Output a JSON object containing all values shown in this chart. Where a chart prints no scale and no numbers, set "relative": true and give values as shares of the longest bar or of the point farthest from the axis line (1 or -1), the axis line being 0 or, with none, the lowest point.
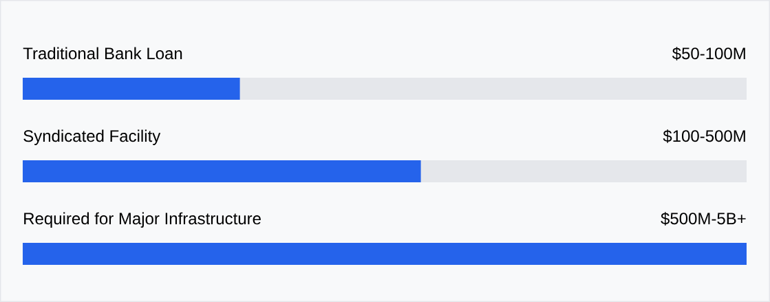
{
  "chart_data": {
    "type": "bar",
    "orientation": "horizontal",
    "relative": true,
    "categories": [
      "Traditional Bank Loan",
      "Syndicated Facility",
      "Required for Major Infrastructure"
    ],
    "values": [
      0.3,
      0.55,
      1.0
    ],
    "annotations": [
      "$50-100M",
      "$100-500M",
      "$500M-5B+"
    ],
    "color": "#2563eb"
  }
}
